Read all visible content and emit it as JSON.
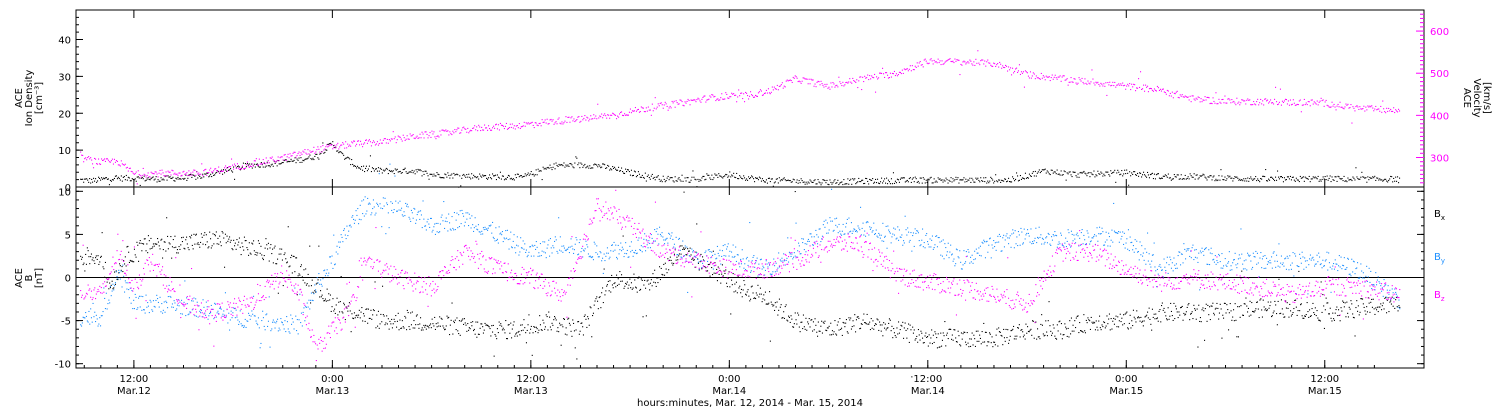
{
  "chart_data": [
    {
      "type": "scatter",
      "panel": "plasma",
      "ylabel_left": [
        "ACE",
        "Ion Density",
        "[cm⁻³]"
      ],
      "ylabel_right": [
        "ACE",
        "Velocity",
        "[km/s]"
      ],
      "ylim_left": [
        0,
        48
      ],
      "ylim_right": [
        230,
        650
      ],
      "yticks_left": [
        0,
        10,
        20,
        30,
        40
      ],
      "yticks_right": [
        300,
        400,
        500,
        600
      ],
      "series": [
        {
          "color": "#000000",
          "axis": "left",
          "points": [
            [
              -6.5,
              2
            ],
            [
              -5,
              1.8
            ],
            [
              -3,
              2.5
            ],
            [
              0,
              2.5
            ],
            [
              3,
              2.3
            ],
            [
              6,
              2.6
            ],
            [
              8,
              3
            ],
            [
              11,
              4.5
            ],
            [
              14,
              6
            ],
            [
              17,
              6.5
            ],
            [
              20,
              7.5
            ],
            [
              22,
              8.5
            ],
            [
              24,
              12
            ],
            [
              25,
              9
            ],
            [
              27,
              5.5
            ],
            [
              30,
              4.5
            ],
            [
              34,
              4.5
            ],
            [
              36,
              3.5
            ],
            [
              42,
              3
            ],
            [
              47,
              2.8
            ],
            [
              51,
              6
            ],
            [
              56,
              6
            ],
            [
              60,
              4
            ],
            [
              64,
              2.3
            ],
            [
              68,
              2.2
            ],
            [
              72,
              3.5
            ],
            [
              76,
              2
            ],
            [
              84,
              1.5
            ],
            [
              90,
              1.8
            ],
            [
              96,
              2
            ],
            [
              102,
              2
            ],
            [
              106,
              2
            ],
            [
              110,
              4.5
            ],
            [
              114,
              3.5
            ],
            [
              120,
              4
            ],
            [
              124,
              3
            ],
            [
              128,
              3
            ],
            [
              132,
              2.5
            ],
            [
              138,
              2.2
            ],
            [
              144,
              2.4
            ],
            [
              148,
              2.2
            ],
            [
              153,
              2.3
            ]
          ]
        },
        {
          "color": "#ff00ff",
          "axis": "right",
          "points": [
            [
              -6.5,
              300
            ],
            [
              -4,
              290
            ],
            [
              -2,
              292
            ],
            [
              0,
              262
            ],
            [
              4,
              264
            ],
            [
              8,
              264
            ],
            [
              12,
              278
            ],
            [
              18,
              300
            ],
            [
              22,
              320
            ],
            [
              26,
              332
            ],
            [
              30,
              338
            ],
            [
              34,
              352
            ],
            [
              38,
              360
            ],
            [
              42,
              372
            ],
            [
              46,
              376
            ],
            [
              50,
              386
            ],
            [
              54,
              392
            ],
            [
              58,
              402
            ],
            [
              62,
              418
            ],
            [
              66,
              430
            ],
            [
              70,
              444
            ],
            [
              74,
              448
            ],
            [
              77,
              460
            ],
            [
              80,
              488
            ],
            [
              84,
              470
            ],
            [
              88,
              488
            ],
            [
              92,
              500
            ],
            [
              96,
              530
            ],
            [
              100,
              528
            ],
            [
              104,
              524
            ],
            [
              108,
              498
            ],
            [
              112,
              488
            ],
            [
              116,
              480
            ],
            [
              120,
              470
            ],
            [
              124,
              462
            ],
            [
              128,
              440
            ],
            [
              132,
              434
            ],
            [
              136,
              434
            ],
            [
              140,
              432
            ],
            [
              144,
              430
            ],
            [
              148,
              418
            ],
            [
              153,
              412
            ]
          ]
        }
      ]
    },
    {
      "type": "scatter",
      "panel": "magnetic",
      "ylabel_left": [
        "ACE",
        "B",
        "[nT]"
      ],
      "ylim": [
        -10.5,
        10.5
      ],
      "yticks": [
        -10,
        -5,
        0,
        5,
        10
      ],
      "zero_line": true,
      "legend_position": "right",
      "legend": [
        {
          "label": "B",
          "sub": "x",
          "color": "#000000"
        },
        {
          "label": "B",
          "sub": "y",
          "color": "#1e90ff"
        },
        {
          "label": "B",
          "sub": "z",
          "color": "#ff00ff"
        }
      ],
      "series": [
        {
          "name": "Bx",
          "color": "#000000",
          "points": [
            [
              -6.5,
              2.5
            ],
            [
              -4,
              2.5
            ],
            [
              -3,
              -1
            ],
            [
              -1,
              2.5
            ],
            [
              2,
              4
            ],
            [
              6,
              4
            ],
            [
              10,
              4.5
            ],
            [
              14,
              3.5
            ],
            [
              18,
              2.5
            ],
            [
              20,
              1
            ],
            [
              22,
              -1
            ],
            [
              24,
              -3
            ],
            [
              27,
              -4
            ],
            [
              30,
              -5
            ],
            [
              34,
              -5
            ],
            [
              38,
              -5.5
            ],
            [
              42,
              -6
            ],
            [
              46,
              -6
            ],
            [
              50,
              -5
            ],
            [
              54,
              -6
            ],
            [
              58,
              0
            ],
            [
              62,
              -1
            ],
            [
              66,
              3
            ],
            [
              70,
              1
            ],
            [
              74,
              -1.5
            ],
            [
              76,
              -2
            ],
            [
              80,
              -5
            ],
            [
              84,
              -6
            ],
            [
              88,
              -5
            ],
            [
              92,
              -6
            ],
            [
              96,
              -7
            ],
            [
              100,
              -7
            ],
            [
              104,
              -7
            ],
            [
              108,
              -6
            ],
            [
              112,
              -6
            ],
            [
              116,
              -5
            ],
            [
              120,
              -5
            ],
            [
              124,
              -4
            ],
            [
              128,
              -4
            ],
            [
              132,
              -4
            ],
            [
              136,
              -3.5
            ],
            [
              140,
              -3.5
            ],
            [
              144,
              -4
            ],
            [
              148,
              -3.5
            ],
            [
              153,
              -3
            ]
          ]
        },
        {
          "name": "By",
          "color": "#1e90ff",
          "points": [
            [
              -6.5,
              -4.5
            ],
            [
              -4,
              -4.5
            ],
            [
              -2,
              1
            ],
            [
              0,
              -3
            ],
            [
              4,
              -3
            ],
            [
              8,
              -3.5
            ],
            [
              12,
              -4.5
            ],
            [
              16,
              -5
            ],
            [
              20,
              -5.5
            ],
            [
              22,
              -1
            ],
            [
              24,
              2
            ],
            [
              26,
              6
            ],
            [
              28,
              8.5
            ],
            [
              32,
              8
            ],
            [
              36,
              6
            ],
            [
              40,
              7
            ],
            [
              44,
              5
            ],
            [
              48,
              3
            ],
            [
              52,
              4
            ],
            [
              56,
              3
            ],
            [
              60,
              3.5
            ],
            [
              64,
              5
            ],
            [
              68,
              2
            ],
            [
              72,
              3
            ],
            [
              76,
              1
            ],
            [
              80,
              3
            ],
            [
              84,
              6
            ],
            [
              88,
              6
            ],
            [
              92,
              5
            ],
            [
              96,
              4.5
            ],
            [
              100,
              2
            ],
            [
              104,
              4
            ],
            [
              108,
              5
            ],
            [
              112,
              4.5
            ],
            [
              116,
              5
            ],
            [
              120,
              4.5
            ],
            [
              124,
              1
            ],
            [
              128,
              3
            ],
            [
              132,
              2
            ],
            [
              136,
              2
            ],
            [
              140,
              2
            ],
            [
              144,
              2
            ],
            [
              148,
              1
            ],
            [
              153,
              -2.5
            ]
          ]
        },
        {
          "name": "Bz",
          "color": "#ff00ff",
          "points": [
            [
              -6.5,
              -1.5
            ],
            [
              -4,
              -2
            ],
            [
              -2,
              3
            ],
            [
              0,
              -1
            ],
            [
              2,
              2
            ],
            [
              6,
              -3
            ],
            [
              10,
              -4
            ],
            [
              14,
              -3
            ],
            [
              18,
              0.5
            ],
            [
              20,
              -2
            ],
            [
              22,
              -8.5
            ],
            [
              24,
              -6
            ],
            [
              26,
              -4
            ],
            [
              28,
              2
            ],
            [
              32,
              0
            ],
            [
              36,
              -1
            ],
            [
              40,
              3
            ],
            [
              44,
              1
            ],
            [
              48,
              0
            ],
            [
              52,
              -2
            ],
            [
              56,
              8.5
            ],
            [
              60,
              6
            ],
            [
              64,
              3
            ],
            [
              68,
              2
            ],
            [
              72,
              1
            ],
            [
              76,
              1
            ],
            [
              80,
              2
            ],
            [
              84,
              4
            ],
            [
              88,
              4
            ],
            [
              92,
              0.5
            ],
            [
              96,
              -0.5
            ],
            [
              100,
              -1
            ],
            [
              104,
              -2
            ],
            [
              108,
              -3
            ],
            [
              112,
              3
            ],
            [
              116,
              3
            ],
            [
              120,
              1
            ],
            [
              124,
              -0.5
            ],
            [
              128,
              0
            ],
            [
              132,
              -0.5
            ],
            [
              136,
              -1
            ],
            [
              140,
              -2
            ],
            [
              144,
              -1
            ],
            [
              148,
              -1
            ],
            [
              153,
              -2
            ]
          ]
        }
      ]
    }
  ],
  "xaxis": {
    "xlim": [
      -7,
      156
    ],
    "ticks": [
      {
        "h": 0,
        "time": "12:00",
        "date": "Mar.12"
      },
      {
        "h": 12,
        "time": "0:00",
        "date": "Mar.13"
      },
      {
        "h": 24,
        "time": "12:00",
        "date": "Mar.13"
      },
      {
        "h": 36,
        "time": "0:00",
        "date": "Mar.14"
      },
      {
        "h": 48,
        "time": "12:00",
        "date": "Mar.14"
      },
      {
        "h": 60,
        "time": "0:00",
        "date": "Mar.15"
      },
      {
        "h": 72,
        "time": "12:00",
        "date": "Mar.15"
      }
    ],
    "label": "hours:minutes, Mar. 12, 2014 - Mar. 15, 2014"
  }
}
